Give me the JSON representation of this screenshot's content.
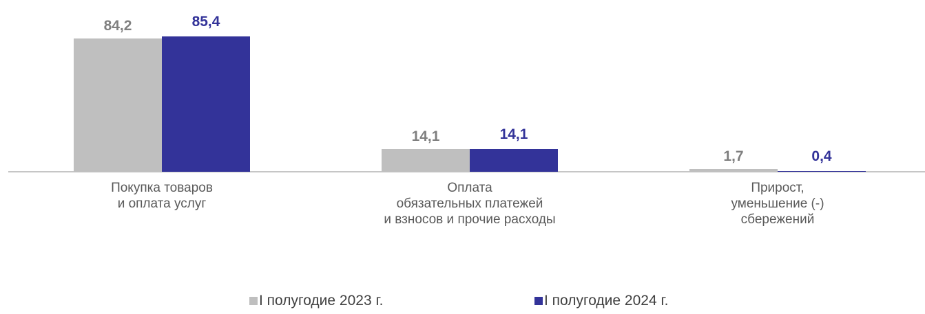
{
  "chart_data": {
    "type": "bar",
    "categories": [
      [
        "Покупка товаров",
        "и оплата услуг"
      ],
      [
        "Оплата",
        "обязательных платежей",
        "и взносов и прочие расходы"
      ],
      [
        "Прирост,",
        "уменьшение (-)",
        "сбережений"
      ]
    ],
    "series": [
      {
        "name": "I полугодие 2023 г.",
        "values": [
          84.2,
          14.1,
          1.7
        ],
        "labels": [
          "84,2",
          "14,1",
          "1,7"
        ],
        "color": "#bfbfbf",
        "label_color": "#7f7f7f"
      },
      {
        "name": "I полугодие 2024 г.",
        "values": [
          85.4,
          14.1,
          0.4
        ],
        "labels": [
          "85,4",
          "14,1",
          "0,4"
        ],
        "color": "#333399",
        "label_color": "#333399"
      }
    ],
    "ylim": [
      0,
      85.4
    ],
    "grid": false,
    "legend_position": "bottom"
  }
}
